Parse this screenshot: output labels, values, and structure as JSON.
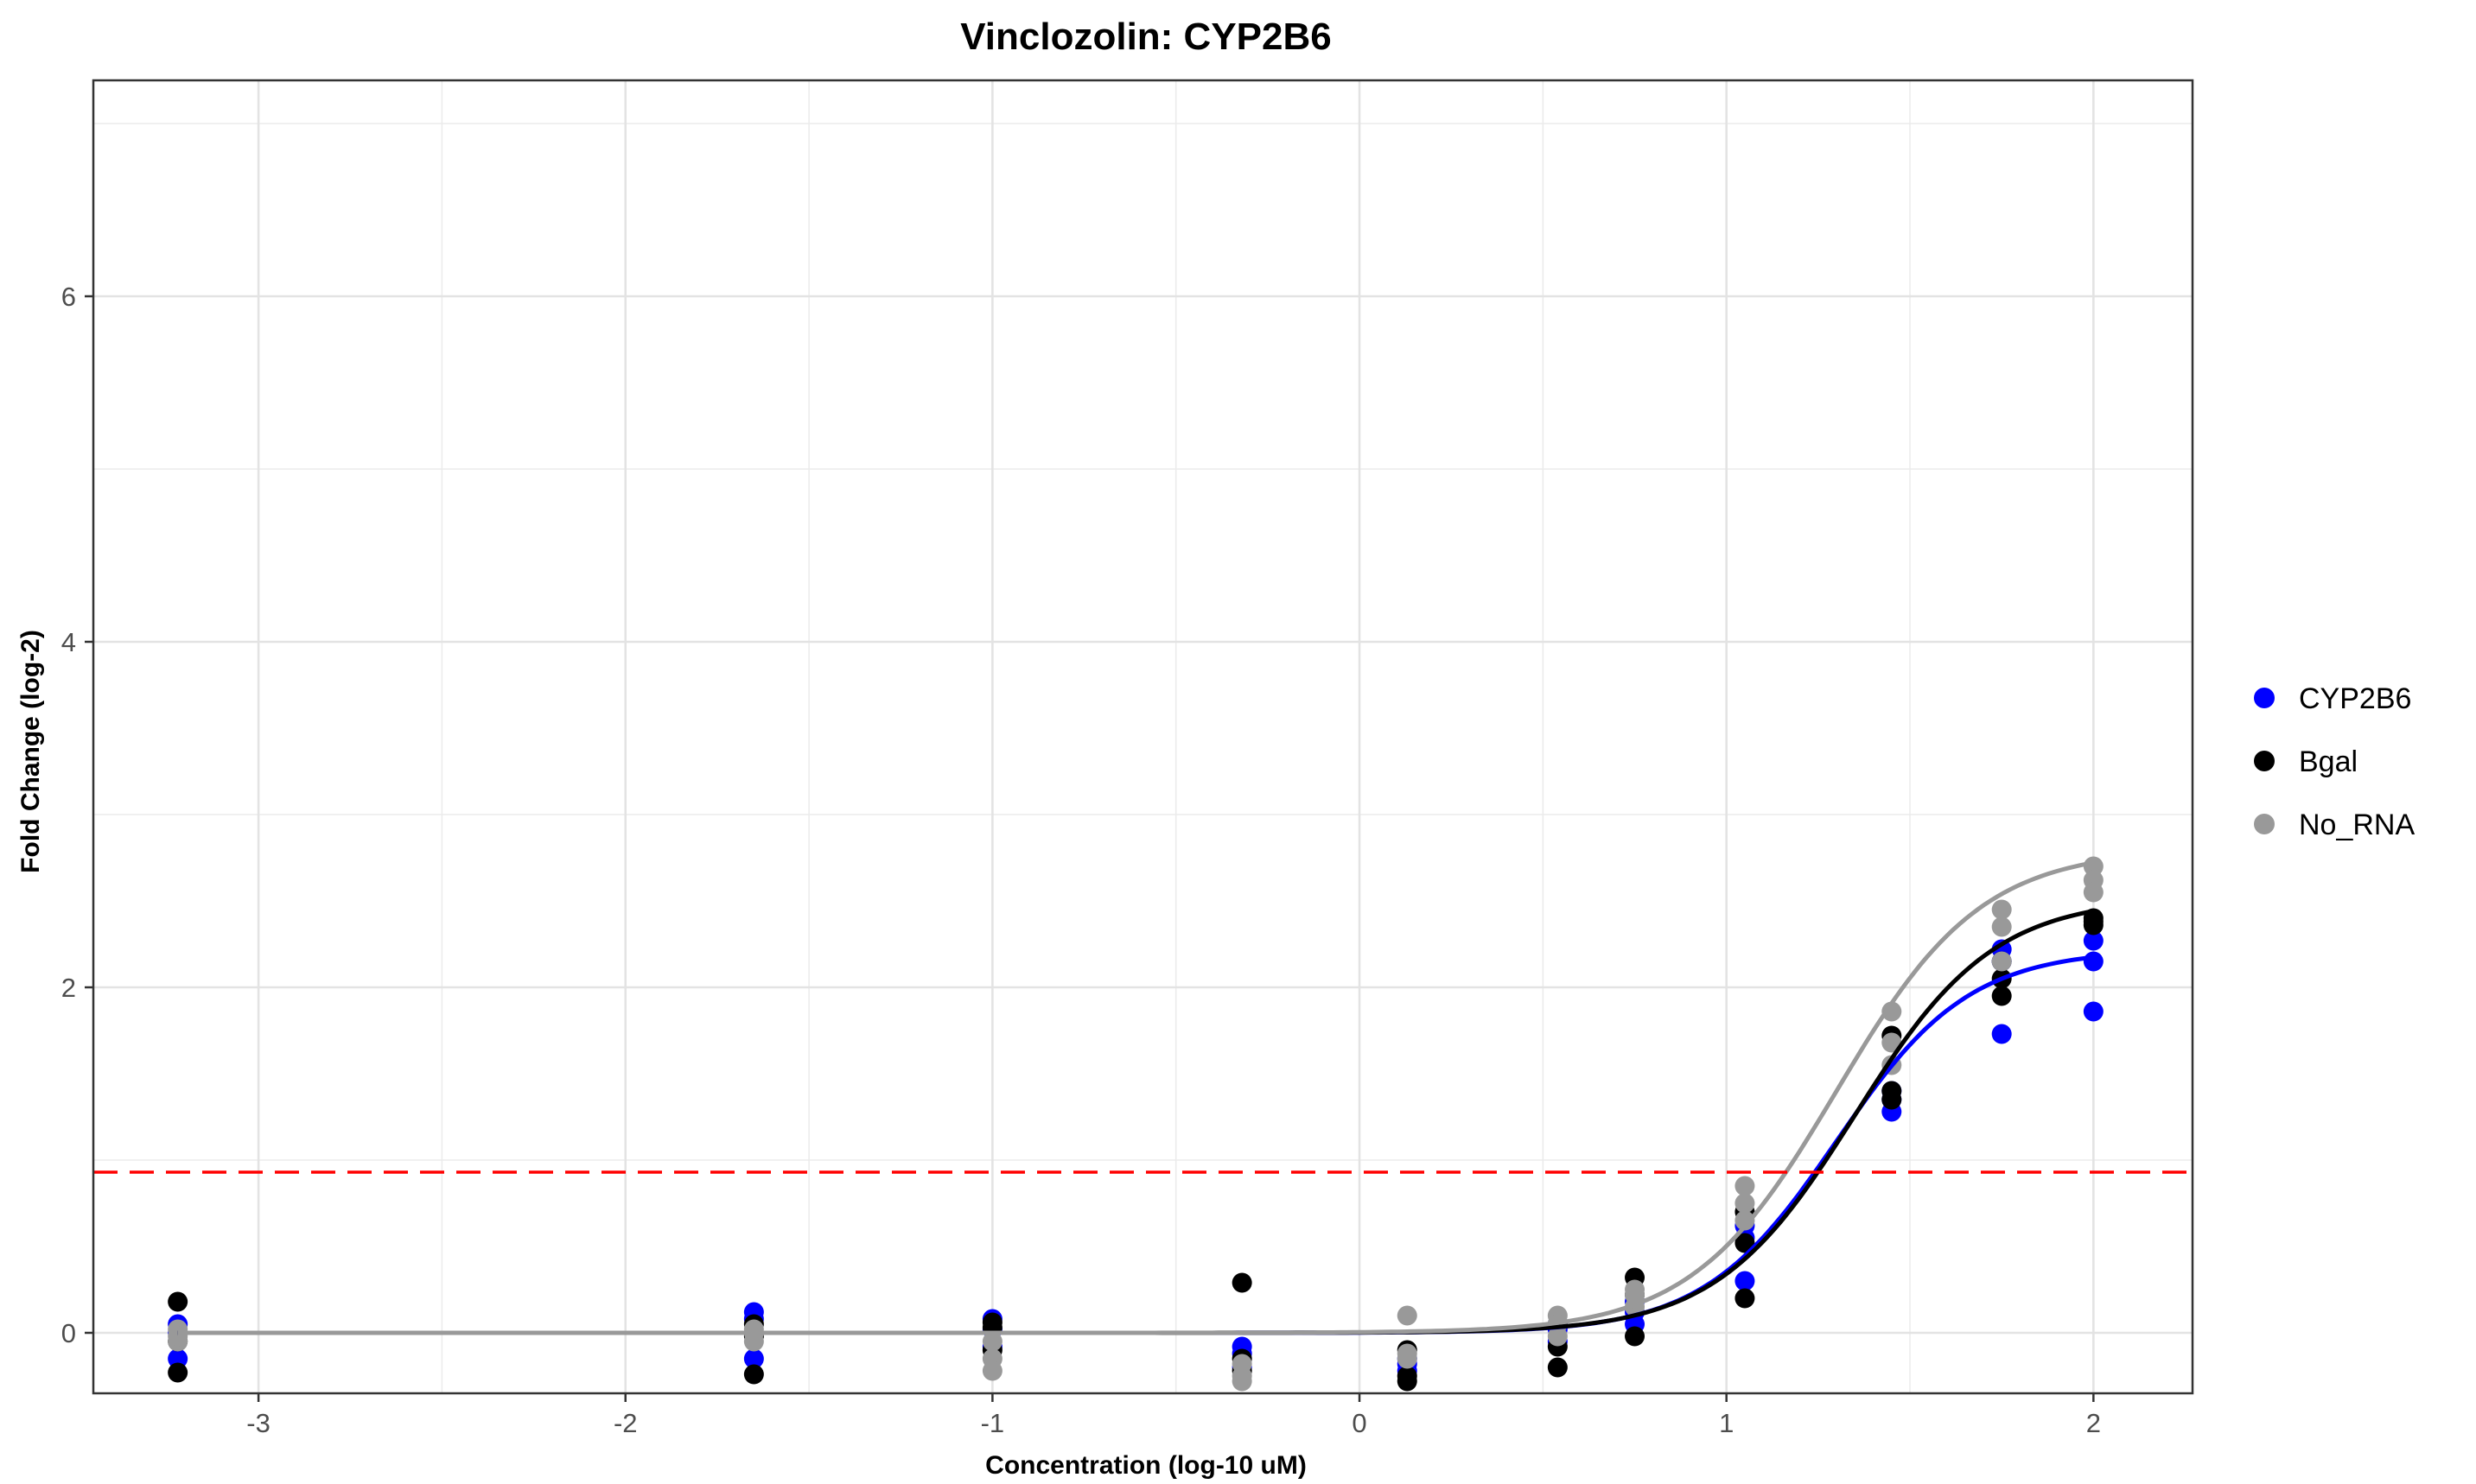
{
  "chart_data": {
    "type": "scatter",
    "title": "Vinclozolin: CYP2B6",
    "xlabel": "Concentration (log-10 uM)",
    "ylabel": "Fold Change (log-2)",
    "xlim": [
      -3.45,
      2.27
    ],
    "ylim": [
      -0.35,
      7.25
    ],
    "x_ticks": [
      -3,
      -2,
      -1,
      0,
      1,
      2
    ],
    "x_tick_labels": [
      "-3",
      "-2",
      "-1",
      "0",
      "1",
      "2"
    ],
    "y_ticks": [
      0,
      2,
      4,
      6
    ],
    "y_tick_labels": [
      "0",
      "2",
      "4",
      "6"
    ],
    "grid": true,
    "legend_position": "right",
    "threshold": {
      "y": 0.93,
      "color": "#ff0000",
      "style": "dashed"
    },
    "series": [
      {
        "name": "CYP2B6",
        "color": "#0000ff",
        "points": [
          [
            -3.22,
            0.05
          ],
          [
            -3.22,
            -0.15
          ],
          [
            -3.22,
            0.0
          ],
          [
            -1.65,
            0.12
          ],
          [
            -1.65,
            0.08
          ],
          [
            -1.65,
            -0.15
          ],
          [
            -1.0,
            0.08
          ],
          [
            -1.0,
            -0.08
          ],
          [
            -1.0,
            0.02
          ],
          [
            -0.32,
            -0.08
          ],
          [
            -0.32,
            -0.12
          ],
          [
            -0.32,
            -0.2
          ],
          [
            0.13,
            -0.15
          ],
          [
            0.13,
            -0.22
          ],
          [
            0.13,
            -0.18
          ],
          [
            0.54,
            0.02
          ],
          [
            0.54,
            -0.05
          ],
          [
            0.54,
            0.05
          ],
          [
            0.75,
            0.05
          ],
          [
            0.75,
            0.12
          ],
          [
            0.75,
            0.18
          ],
          [
            1.05,
            0.3
          ],
          [
            1.05,
            0.55
          ],
          [
            1.05,
            0.62
          ],
          [
            1.45,
            1.28
          ],
          [
            1.45,
            1.35
          ],
          [
            1.45,
            1.4
          ],
          [
            1.75,
            1.73
          ],
          [
            1.75,
            2.22
          ],
          [
            1.75,
            2.15
          ],
          [
            2.0,
            1.86
          ],
          [
            2.0,
            2.15
          ],
          [
            2.0,
            2.27
          ]
        ],
        "fit": {
          "top": 2.22,
          "ec50": 1.3,
          "slope": 2.4
        }
      },
      {
        "name": "Bgal",
        "color": "#000000",
        "points": [
          [
            -3.22,
            0.18
          ],
          [
            -3.22,
            -0.23
          ],
          [
            -3.22,
            -0.05
          ],
          [
            -1.65,
            -0.24
          ],
          [
            -1.65,
            0.05
          ],
          [
            -1.65,
            -0.02
          ],
          [
            -1.0,
            0.06
          ],
          [
            -1.0,
            0.03
          ],
          [
            -1.0,
            -0.1
          ],
          [
            -0.32,
            0.29
          ],
          [
            -0.32,
            -0.15
          ],
          [
            -0.32,
            -0.22
          ],
          [
            0.13,
            -0.25
          ],
          [
            0.13,
            -0.1
          ],
          [
            0.13,
            -0.28
          ],
          [
            0.54,
            -0.2
          ],
          [
            0.54,
            -0.08
          ],
          [
            0.54,
            0.05
          ],
          [
            0.75,
            0.32
          ],
          [
            0.75,
            -0.02
          ],
          [
            0.75,
            0.22
          ],
          [
            1.05,
            0.2
          ],
          [
            1.05,
            0.52
          ],
          [
            1.05,
            0.7
          ],
          [
            1.45,
            1.72
          ],
          [
            1.45,
            1.4
          ],
          [
            1.45,
            1.35
          ],
          [
            1.75,
            1.95
          ],
          [
            1.75,
            2.05
          ],
          [
            1.75,
            2.15
          ],
          [
            2.0,
            2.36
          ],
          [
            2.0,
            2.38
          ],
          [
            2.0,
            2.4
          ]
        ],
        "fit": {
          "top": 2.52,
          "ec50": 1.35,
          "slope": 2.3
        }
      },
      {
        "name": "No_RNA",
        "color": "#999999",
        "points": [
          [
            -3.22,
            0.02
          ],
          [
            -3.22,
            -0.05
          ],
          [
            -3.22,
            -0.02
          ],
          [
            -1.65,
            0.02
          ],
          [
            -1.65,
            -0.05
          ],
          [
            -1.65,
            0.0
          ],
          [
            -1.0,
            -0.15
          ],
          [
            -1.0,
            -0.22
          ],
          [
            -1.0,
            -0.05
          ],
          [
            -0.32,
            -0.18
          ],
          [
            -0.32,
            -0.28
          ],
          [
            -0.32,
            -0.25
          ],
          [
            0.13,
            0.1
          ],
          [
            0.13,
            -0.15
          ],
          [
            0.13,
            -0.12
          ],
          [
            0.54,
            0.1
          ],
          [
            0.54,
            0.05
          ],
          [
            0.54,
            -0.02
          ],
          [
            0.75,
            0.22
          ],
          [
            0.75,
            0.25
          ],
          [
            0.75,
            0.15
          ],
          [
            1.05,
            0.85
          ],
          [
            1.05,
            0.75
          ],
          [
            1.05,
            0.65
          ],
          [
            1.45,
            1.86
          ],
          [
            1.45,
            1.68
          ],
          [
            1.45,
            1.55
          ],
          [
            1.75,
            2.45
          ],
          [
            1.75,
            2.35
          ],
          [
            1.75,
            2.15
          ],
          [
            2.0,
            2.7
          ],
          [
            2.0,
            2.62
          ],
          [
            2.0,
            2.55
          ]
        ],
        "fit": {
          "top": 2.8,
          "ec50": 1.3,
          "slope": 2.2
        }
      }
    ]
  }
}
